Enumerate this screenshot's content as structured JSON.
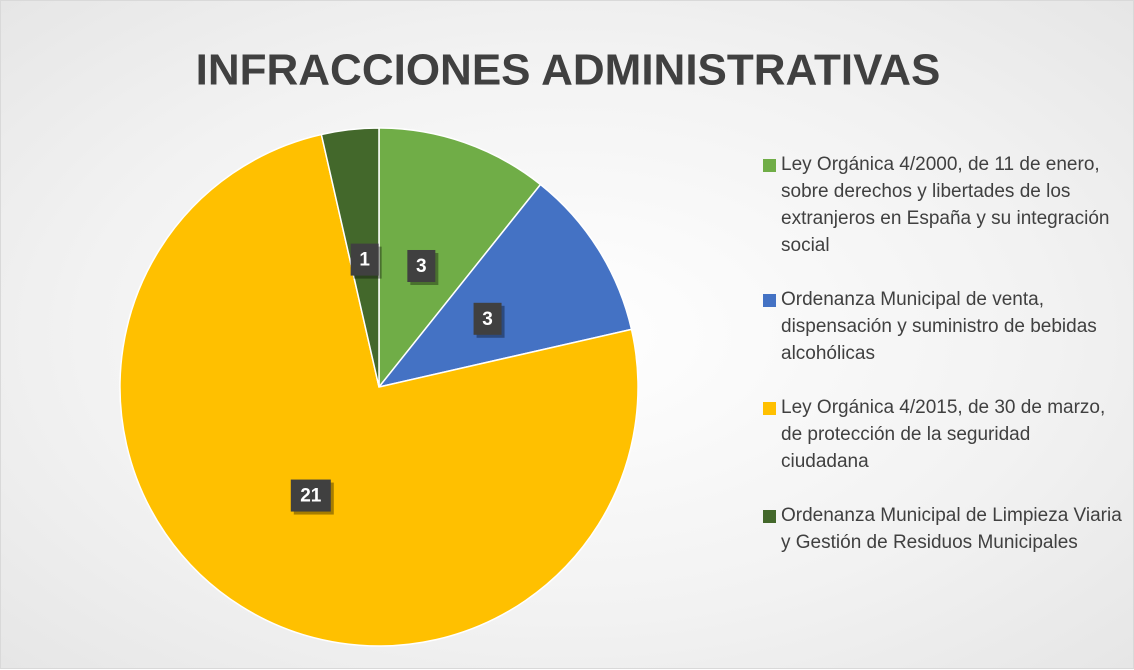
{
  "chart_data": {
    "type": "pie",
    "title": "INFRACCIONES ADMINISTRATIVAS",
    "categories": [
      "Ley Orgánica 4/2000, de 11 de enero, sobre derechos y libertades de los extranjeros en España y su integración social",
      "Ordenanza Municipal de venta, dispensación y suministro de bebidas alcohólicas",
      "Ley Orgánica 4/2015, de 30 de marzo, de protección de la seguridad ciudadana",
      "Ordenanza Municipal de Limpieza Viaria y Gestión de Residuos Municipales"
    ],
    "values": [
      3,
      3,
      21,
      1
    ],
    "colors": [
      "#70ad47",
      "#4472c4",
      "#ffc000",
      "#43682b"
    ],
    "legend": "right"
  }
}
